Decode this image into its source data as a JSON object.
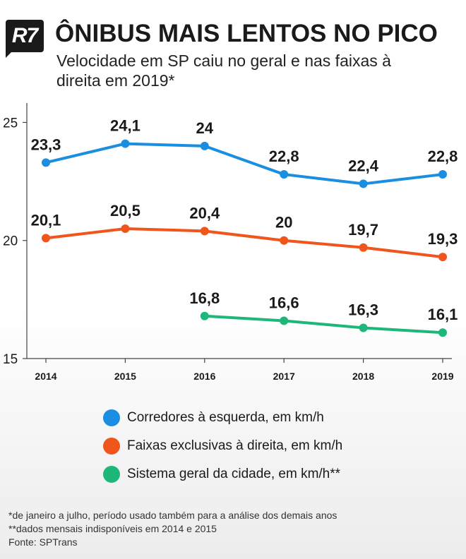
{
  "header": {
    "logo": "R7",
    "title": "ÔNIBUS MAIS LENTOS NO PICO",
    "subtitle": "Velocidade em SP caiu no geral e nas faixas à direita em 2019*"
  },
  "chart_data": {
    "type": "line",
    "x": [
      2014,
      2015,
      2016,
      2017,
      2018,
      2019
    ],
    "ylim": [
      15,
      26
    ],
    "yticks": [
      15,
      20,
      25
    ],
    "xtick_labels": [
      "2014",
      "2015",
      "2016",
      "2017",
      "2018",
      "2019"
    ],
    "grid": false,
    "series": [
      {
        "name": "Corredores à esquerda, em km/h",
        "color": "#1a8ee0",
        "values": [
          23.3,
          24.1,
          24,
          22.8,
          22.4,
          22.8
        ],
        "labels": [
          "23,3",
          "24,1",
          "24",
          "22,8",
          "22,4",
          "22,8"
        ]
      },
      {
        "name": "Faixas exclusivas à direita, em km/h",
        "color": "#f0561c",
        "values": [
          20.1,
          20.5,
          20.4,
          20,
          19.7,
          19.3
        ],
        "labels": [
          "20,1",
          "20,5",
          "20,4",
          "20",
          "19,7",
          "19,3"
        ]
      },
      {
        "name": "Sistema geral da cidade, em km/h**",
        "color": "#1db879",
        "values": [
          null,
          null,
          16.8,
          16.6,
          16.3,
          16.1
        ],
        "labels": [
          "",
          "",
          "16,8",
          "16,6",
          "16,3",
          "16,1"
        ]
      }
    ]
  },
  "footnotes": {
    "note1": "*de janeiro a julho, período usado também para a análise dos demais anos",
    "note2": "**dados mensais indisponíveis em 2014 e 2015",
    "source": "Fonte: SPTrans"
  }
}
